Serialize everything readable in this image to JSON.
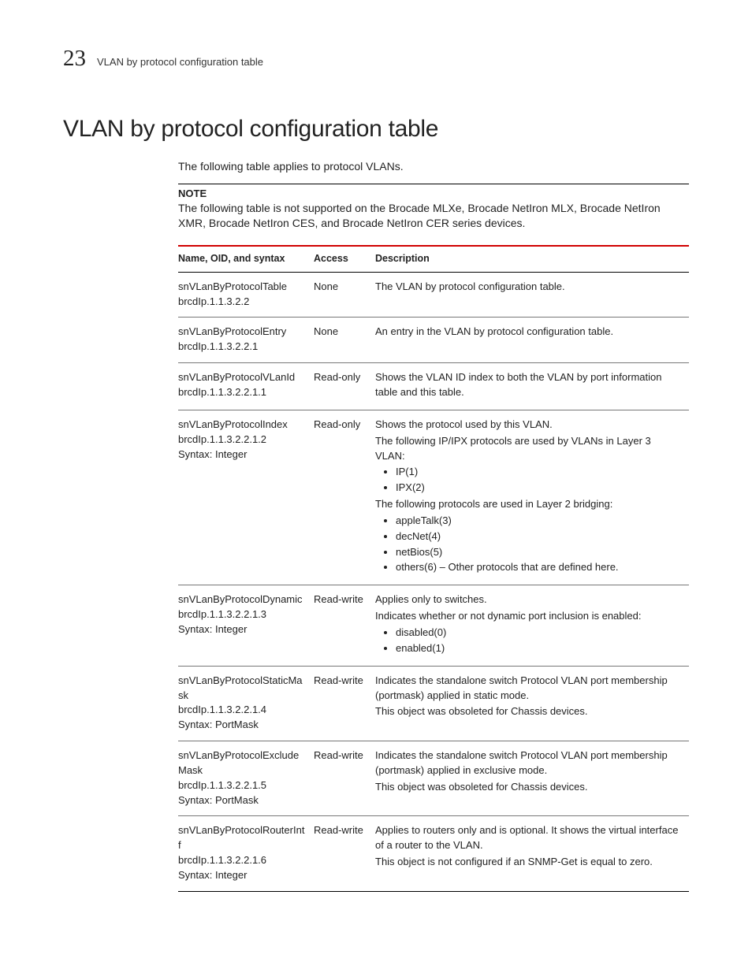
{
  "chapter_number": "23",
  "running_header": "VLAN by protocol configuration table",
  "heading": "VLAN by protocol configuration table",
  "intro": "The following table applies to protocol VLANs.",
  "note_label": "NOTE",
  "note_body": "The following table is not supported on the Brocade MLXe, Brocade NetIron MLX, Brocade NetIron XMR, Brocade NetIron CES, and Brocade NetIron CER series devices.",
  "columns": [
    "Name, OID, and syntax",
    "Access",
    "Description"
  ],
  "accent_color": "#d00000",
  "rows": [
    {
      "name_lines": [
        "snVLanByProtocolTable",
        "brcdIp.1.1.3.2.2"
      ],
      "access": "None",
      "desc": [
        {
          "type": "p",
          "text": "The VLAN by protocol configuration table."
        }
      ]
    },
    {
      "name_lines": [
        "snVLanByProtocolEntry",
        "brcdIp.1.1.3.2.2.1"
      ],
      "access": "None",
      "desc": [
        {
          "type": "p",
          "text": "An entry in the VLAN by protocol configuration table."
        }
      ]
    },
    {
      "name_lines": [
        "snVLanByProtocolVLanId",
        "brcdIp.1.1.3.2.2.1.1"
      ],
      "access": "Read-only",
      "desc": [
        {
          "type": "p",
          "text": "Shows the VLAN ID index to both the VLAN by port information table and this table."
        }
      ]
    },
    {
      "name_lines": [
        "snVLanByProtocolIndex",
        "brcdIp.1.1.3.2.2.1.2",
        "Syntax: Integer"
      ],
      "access": "Read-only",
      "desc": [
        {
          "type": "p",
          "text": "Shows the protocol used by this VLAN."
        },
        {
          "type": "p",
          "text": "The following IP/IPX protocols are used by VLANs in Layer 3 VLAN:"
        },
        {
          "type": "ul",
          "items": [
            "IP(1)",
            "IPX(2)"
          ]
        },
        {
          "type": "p",
          "text": "The following protocols are used in Layer 2 bridging:"
        },
        {
          "type": "ul",
          "items": [
            "appleTalk(3)",
            "decNet(4)",
            "netBios(5)",
            "others(6) – Other protocols that are defined here."
          ]
        }
      ]
    },
    {
      "name_lines": [
        "snVLanByProtocolDynamic",
        "brcdIp.1.1.3.2.2.1.3",
        "Syntax: Integer"
      ],
      "access": "Read-write",
      "desc": [
        {
          "type": "p",
          "text": "Applies only to switches."
        },
        {
          "type": "p",
          "text": "Indicates whether or not dynamic port inclusion is enabled:"
        },
        {
          "type": "ul",
          "items": [
            "disabled(0)",
            "enabled(1)"
          ]
        }
      ]
    },
    {
      "name_lines": [
        "snVLanByProtocolStaticMask",
        "brcdIp.1.1.3.2.2.1.4",
        "Syntax: PortMask"
      ],
      "access": "Read-write",
      "desc": [
        {
          "type": "p",
          "text": "Indicates the standalone switch Protocol VLAN port membership (portmask) applied in static mode."
        },
        {
          "type": "p",
          "text": "This object was obsoleted for Chassis devices."
        }
      ]
    },
    {
      "name_lines": [
        "snVLanByProtocolExcludeMask",
        "brcdIp.1.1.3.2.2.1.5",
        "Syntax: PortMask"
      ],
      "access": "Read-write",
      "desc": [
        {
          "type": "p",
          "text": "Indicates the standalone switch Protocol VLAN port membership (portmask) applied in exclusive mode."
        },
        {
          "type": "p",
          "text": "This object was obsoleted for Chassis devices."
        }
      ]
    },
    {
      "name_lines": [
        "snVLanByProtocolRouterIntf",
        "brcdIp.1.1.3.2.2.1.6",
        "Syntax: Integer"
      ],
      "access": "Read-write",
      "desc": [
        {
          "type": "p",
          "text": "Applies to routers only and is optional. It shows the virtual interface of a router to the VLAN."
        },
        {
          "type": "p",
          "text": "This object is not configured if an SNMP-Get is equal to zero."
        }
      ]
    }
  ]
}
